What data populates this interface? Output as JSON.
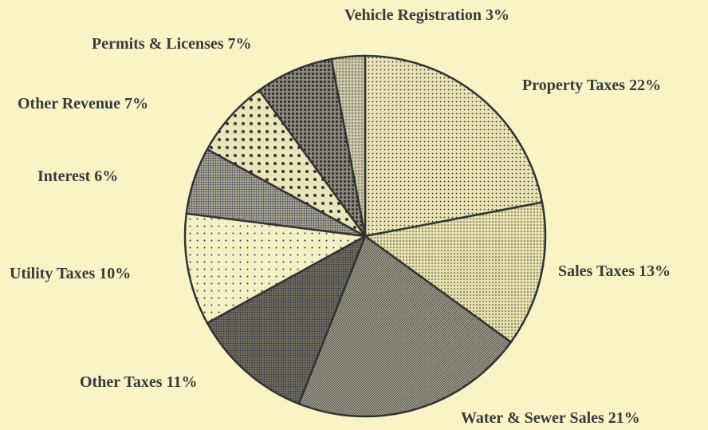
{
  "chart_data": {
    "type": "pie",
    "categories": [
      "Property Taxes",
      "Sales Taxes",
      "Water & Sewer Sales",
      "Other Taxes",
      "Utility Taxes",
      "Interest",
      "Other Revenue",
      "Permits & Licenses",
      "Vehicle Registration"
    ],
    "values": [
      22,
      13,
      21,
      11,
      10,
      6,
      7,
      7,
      3
    ],
    "value_labels": [
      "22%",
      "13%",
      "21%",
      "11%",
      "10%",
      "6%",
      "7%",
      "7%",
      "3%"
    ],
    "colors": [
      "#e9e4b4",
      "#e6e0ad",
      "#a9a690",
      "#6e6b62",
      "#f4f0c6",
      "#aaa89a",
      "#eae5b8",
      "#8d8a7c",
      "#c9c5a6"
    ]
  }
}
